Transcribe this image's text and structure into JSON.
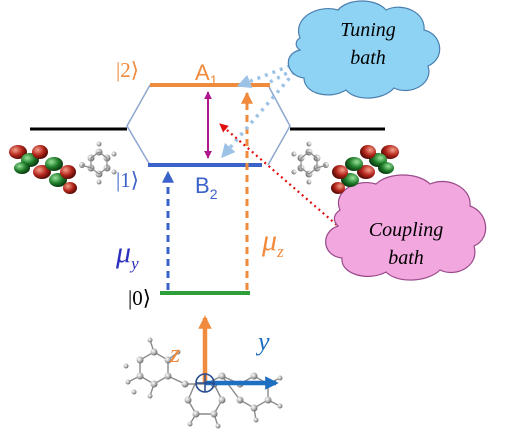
{
  "colors": {
    "orange": "#f08a3c",
    "blue": "#3a62c8",
    "green": "#2e9e3a",
    "magenta": "#b0178c",
    "red": "#e01010",
    "light_blue": "#9cc3e6",
    "outline": "#8da8cf",
    "cloud_blue": "#8fd3f4",
    "cloud_pink": "#f2a7df",
    "arrow_blue": "#1f6fc0",
    "black": "#000000"
  },
  "levels": {
    "state2": "|2⟩",
    "state1": "|1⟩",
    "state0": "|0⟩",
    "upper": "A",
    "upper_sub": "1",
    "lower": "B",
    "lower_sub": "2"
  },
  "dipoles": {
    "y_symbol": "μ",
    "y_sub": "y",
    "z_symbol": "μ",
    "z_sub": "z"
  },
  "baths": {
    "tuning_line1": "Tuning",
    "tuning_line2": "bath",
    "coupling_line1": "Coupling",
    "coupling_line2": "bath"
  },
  "axes": {
    "z": "z",
    "y": "y"
  }
}
